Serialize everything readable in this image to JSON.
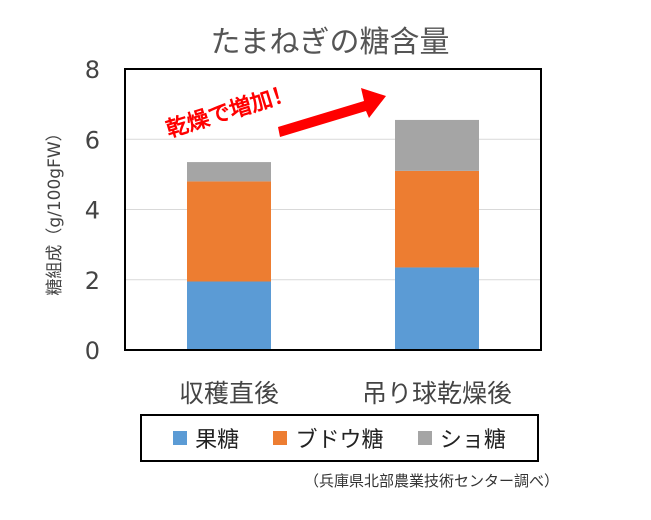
{
  "chart_data": {
    "type": "bar",
    "stacked": true,
    "title": "たまねぎの糖含量",
    "ylabel": "糖組成（g/100gFW）",
    "xlabel": "",
    "ylim": [
      0,
      8
    ],
    "yticks": [
      "0",
      "2",
      "4",
      "6",
      "8"
    ],
    "grid": true,
    "legend_position": "bottom",
    "categories": [
      "収穫直後",
      "吊り球乾燥後"
    ],
    "series": [
      {
        "name": "果糖",
        "values": [
          1.95,
          2.35
        ],
        "color": "#5b9bd5"
      },
      {
        "name": "ブドウ糖",
        "values": [
          2.85,
          2.75
        ],
        "color": "#ed7d31"
      },
      {
        "name": "ショ糖",
        "values": [
          0.55,
          1.45
        ],
        "color": "#a5a5a5"
      }
    ],
    "annotation": {
      "text": "乾燥で増加！",
      "color": "#ff0000"
    }
  },
  "source_note": "（兵庫県北部農業技術センター調べ）"
}
